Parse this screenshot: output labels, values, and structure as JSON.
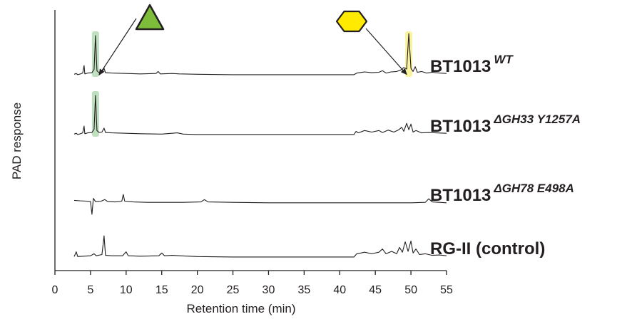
{
  "chart_data": {
    "type": "line",
    "xlabel": "Retention time (min)",
    "ylabel": "PAD response",
    "xlim": [
      0,
      55
    ],
    "xticks": [
      0,
      5,
      10,
      15,
      20,
      25,
      30,
      35,
      40,
      45,
      50,
      55
    ],
    "grid": false,
    "series": [
      {
        "name": "BT1013",
        "superscript": "WT",
        "trace": [
          [
            2.7,
            0.03
          ],
          [
            3.0,
            0.05
          ],
          [
            3.2,
            0.02
          ],
          [
            3.6,
            0.04
          ],
          [
            3.9,
            0.06
          ],
          [
            4.1,
            0.25
          ],
          [
            4.2,
            0.04
          ],
          [
            4.6,
            0.06
          ],
          [
            5.2,
            0.07
          ],
          [
            5.5,
            0.15
          ],
          [
            5.7,
            1.0
          ],
          [
            5.9,
            0.12
          ],
          [
            6.2,
            0.07
          ],
          [
            6.6,
            0.08
          ],
          [
            6.9,
            0.18
          ],
          [
            7.1,
            0.07
          ],
          [
            8.0,
            0.06
          ],
          [
            10,
            0.05
          ],
          [
            12,
            0.04
          ],
          [
            14.2,
            0.05
          ],
          [
            14.5,
            0.1
          ],
          [
            14.8,
            0.04
          ],
          [
            16.5,
            0.05
          ],
          [
            17.5,
            0.04
          ],
          [
            20,
            0.03
          ],
          [
            25,
            0.02
          ],
          [
            30,
            0.02
          ],
          [
            35,
            0.02
          ],
          [
            40,
            0.02
          ],
          [
            42.0,
            0.02
          ],
          [
            42.4,
            0.06
          ],
          [
            43.5,
            0.09
          ],
          [
            44.5,
            0.07
          ],
          [
            45.5,
            0.08
          ],
          [
            46.0,
            0.12
          ],
          [
            46.5,
            0.06
          ],
          [
            47.2,
            0.09
          ],
          [
            48.0,
            0.1
          ],
          [
            48.6,
            0.14
          ],
          [
            49.0,
            0.2
          ],
          [
            49.4,
            0.16
          ],
          [
            49.7,
            1.05
          ],
          [
            50.0,
            0.18
          ],
          [
            50.3,
            0.1
          ],
          [
            50.6,
            0.22
          ],
          [
            50.9,
            0.08
          ],
          [
            51.5,
            0.1
          ],
          [
            52.2,
            0.06
          ],
          [
            53.0,
            0.08
          ],
          [
            54.0,
            0.06
          ],
          [
            55,
            0.05
          ]
        ]
      },
      {
        "name": "BT1013",
        "superscript": "ΔGH33 Y1257A",
        "trace": [
          [
            2.7,
            0.03
          ],
          [
            3.0,
            0.05
          ],
          [
            3.2,
            0.02
          ],
          [
            3.6,
            0.04
          ],
          [
            3.9,
            0.06
          ],
          [
            4.1,
            0.23
          ],
          [
            4.2,
            0.04
          ],
          [
            4.6,
            0.06
          ],
          [
            5.2,
            0.07
          ],
          [
            5.5,
            0.15
          ],
          [
            5.7,
            1.0
          ],
          [
            5.9,
            0.12
          ],
          [
            6.2,
            0.07
          ],
          [
            6.6,
            0.08
          ],
          [
            6.9,
            0.18
          ],
          [
            7.1,
            0.07
          ],
          [
            8.0,
            0.06
          ],
          [
            10,
            0.05
          ],
          [
            12,
            0.04
          ],
          [
            15,
            0.03
          ],
          [
            17.2,
            0.06
          ],
          [
            18,
            0.03
          ],
          [
            20,
            0.02
          ],
          [
            25,
            0.02
          ],
          [
            30,
            0.02
          ],
          [
            35,
            0.02
          ],
          [
            40,
            0.02
          ],
          [
            42.0,
            0.02
          ],
          [
            42.3,
            0.1
          ],
          [
            42.6,
            0.06
          ],
          [
            43.5,
            0.12
          ],
          [
            44.5,
            0.08
          ],
          [
            45.5,
            0.12
          ],
          [
            46.0,
            0.07
          ],
          [
            46.8,
            0.13
          ],
          [
            47.6,
            0.08
          ],
          [
            48.3,
            0.14
          ],
          [
            48.7,
            0.2
          ],
          [
            49.0,
            0.1
          ],
          [
            49.4,
            0.3
          ],
          [
            49.7,
            0.14
          ],
          [
            50.0,
            0.28
          ],
          [
            50.3,
            0.08
          ],
          [
            50.7,
            0.12
          ],
          [
            51.5,
            0.06
          ],
          [
            52.5,
            0.07
          ],
          [
            53.5,
            0.06
          ],
          [
            55,
            0.05
          ]
        ]
      },
      {
        "name": "BT1013",
        "superscript": "ΔGH78 E498A",
        "trace": [
          [
            2.7,
            0.1
          ],
          [
            3.5,
            0.09
          ],
          [
            4.5,
            0.08
          ],
          [
            5.0,
            0.07
          ],
          [
            5.2,
            -0.25
          ],
          [
            5.4,
            0.15
          ],
          [
            5.7,
            0.07
          ],
          [
            6.5,
            0.08
          ],
          [
            7.0,
            0.12
          ],
          [
            7.4,
            0.07
          ],
          [
            8.5,
            0.06
          ],
          [
            9.4,
            0.08
          ],
          [
            9.6,
            0.25
          ],
          [
            9.8,
            0.08
          ],
          [
            11,
            0.06
          ],
          [
            13,
            0.05
          ],
          [
            15,
            0.05
          ],
          [
            18,
            0.05
          ],
          [
            20.5,
            0.06
          ],
          [
            21.0,
            0.12
          ],
          [
            21.5,
            0.06
          ],
          [
            25,
            0.05
          ],
          [
            30,
            0.04
          ],
          [
            35,
            0.04
          ],
          [
            40,
            0.04
          ],
          [
            45,
            0.04
          ],
          [
            48,
            0.04
          ],
          [
            50,
            0.04
          ],
          [
            52.0,
            0.05
          ],
          [
            52.5,
            0.14
          ],
          [
            53.0,
            0.06
          ],
          [
            55,
            0.04
          ]
        ]
      },
      {
        "name": "RG-II (control)",
        "superscript": "",
        "trace": [
          [
            2.7,
            0.03
          ],
          [
            3.0,
            0.15
          ],
          [
            3.2,
            0.03
          ],
          [
            4,
            0.04
          ],
          [
            5,
            0.05
          ],
          [
            5.5,
            0.1
          ],
          [
            5.8,
            0.05
          ],
          [
            6.6,
            0.08
          ],
          [
            6.9,
            0.55
          ],
          [
            7.1,
            0.06
          ],
          [
            8.0,
            0.05
          ],
          [
            9.5,
            0.05
          ],
          [
            10.0,
            0.15
          ],
          [
            10.3,
            0.05
          ],
          [
            12,
            0.04
          ],
          [
            14.6,
            0.05
          ],
          [
            15.0,
            0.12
          ],
          [
            15.4,
            0.05
          ],
          [
            16.5,
            0.06
          ],
          [
            17.5,
            0.05
          ],
          [
            20,
            0.03
          ],
          [
            25,
            0.02
          ],
          [
            30,
            0.02
          ],
          [
            35,
            0.02
          ],
          [
            40,
            0.02
          ],
          [
            42.0,
            0.02
          ],
          [
            42.4,
            0.1
          ],
          [
            43.5,
            0.14
          ],
          [
            44.5,
            0.1
          ],
          [
            45.5,
            0.14
          ],
          [
            46.0,
            0.22
          ],
          [
            46.5,
            0.1
          ],
          [
            47.3,
            0.16
          ],
          [
            48.0,
            0.1
          ],
          [
            48.4,
            0.26
          ],
          [
            48.8,
            0.14
          ],
          [
            49.2,
            0.4
          ],
          [
            49.6,
            0.16
          ],
          [
            50.0,
            0.42
          ],
          [
            50.3,
            0.12
          ],
          [
            50.7,
            0.22
          ],
          [
            51.2,
            0.08
          ],
          [
            52,
            0.1
          ],
          [
            53,
            0.06
          ],
          [
            54,
            0.07
          ],
          [
            55,
            0.05
          ]
        ]
      }
    ],
    "highlights": [
      {
        "trace": 0,
        "x_range": [
          5.2,
          6.2
        ],
        "color": "#bfe0bf"
      },
      {
        "trace": 0,
        "x_range": [
          49.2,
          50.2
        ],
        "color": "#faf3a0"
      },
      {
        "trace": 1,
        "x_range": [
          5.2,
          6.2
        ],
        "color": "#bfe0bf"
      }
    ],
    "annotations": [
      {
        "shape": "triangle",
        "fill": "#7dbd3a",
        "stroke": "#231f20",
        "points_to": {
          "trace": 0,
          "x": 5.9
        }
      },
      {
        "shape": "hexagon",
        "fill": "#ffea00",
        "stroke": "#231f20",
        "points_to": {
          "trace": 0,
          "x": 49.3
        }
      }
    ]
  }
}
